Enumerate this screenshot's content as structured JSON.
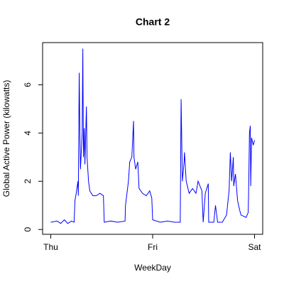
{
  "chart_data": {
    "type": "line",
    "title": "Chart 2",
    "x_label": "WeekDay",
    "y_label": "Global Active Power (kilowatts)",
    "color": "#0000ff",
    "x": [
      0,
      1.5,
      2.35,
      3.2,
      4.0,
      4.9,
      5.5,
      5.7,
      6.0,
      6.4,
      6.5,
      6.7,
      6.9,
      7.0,
      7.4,
      7.55,
      7.7,
      7.9,
      8.05,
      8.4,
      8.55,
      8.9,
      9.2,
      9.9,
      10.7,
      11.6,
      12.4,
      12.6,
      14.1,
      15.8,
      17.5,
      17.6,
      18.3,
      18.6,
      19.1,
      19.5,
      19.6,
      20.0,
      20.5,
      20.8,
      21.6,
      22.5,
      23.3,
      23.8,
      24.0,
      25.8,
      27.5,
      29.2,
      30.5,
      30.7,
      31.0,
      31.4,
      31.5,
      31.9,
      32.6,
      33.4,
      34.2,
      34.7,
      35.6,
      35.9,
      36.4,
      37.1,
      37.2,
      38.4,
      38.8,
      39.3,
      40.4,
      41.4,
      42.0,
      42.3,
      42.6,
      43.0,
      43.1,
      43.5,
      44.0,
      44.5,
      44.8,
      46.0,
      46.5,
      46.6,
      46.8,
      47.0,
      47.1,
      47.3,
      47.7,
      48.0
    ],
    "values": [
      0.3,
      0.35,
      0.25,
      0.4,
      0.25,
      0.35,
      0.3,
      1.2,
      1.5,
      2.0,
      1.4,
      6.5,
      3.5,
      2.5,
      4.0,
      7.5,
      3.0,
      4.2,
      2.7,
      5.1,
      3.0,
      2.0,
      1.6,
      1.4,
      1.4,
      1.5,
      1.4,
      0.3,
      0.35,
      0.3,
      0.35,
      1.0,
      2.0,
      2.8,
      3.0,
      4.5,
      3.0,
      2.5,
      2.8,
      1.7,
      1.5,
      1.4,
      1.6,
      1.3,
      0.4,
      0.3,
      0.35,
      0.3,
      0.3,
      5.4,
      2.0,
      2.8,
      3.2,
      2.0,
      1.5,
      1.7,
      1.5,
      2.0,
      1.6,
      0.3,
      1.5,
      1.9,
      0.3,
      0.3,
      1.0,
      0.3,
      0.3,
      0.6,
      1.6,
      3.2,
      2.0,
      3.0,
      1.8,
      2.3,
      1.2,
      0.8,
      0.6,
      0.5,
      0.7,
      1.5,
      4.0,
      4.3,
      1.8,
      3.8,
      3.5,
      3.7
    ],
    "xlim": [
      -1.92,
      49.92
    ],
    "ylim": [
      -0.2,
      7.75
    ],
    "xticks": [
      {
        "value": 0,
        "label": "Thu"
      },
      {
        "value": 24,
        "label": "Fri"
      },
      {
        "value": 48,
        "label": "Sat"
      }
    ],
    "yticks": [
      0,
      2,
      4,
      6
    ]
  }
}
